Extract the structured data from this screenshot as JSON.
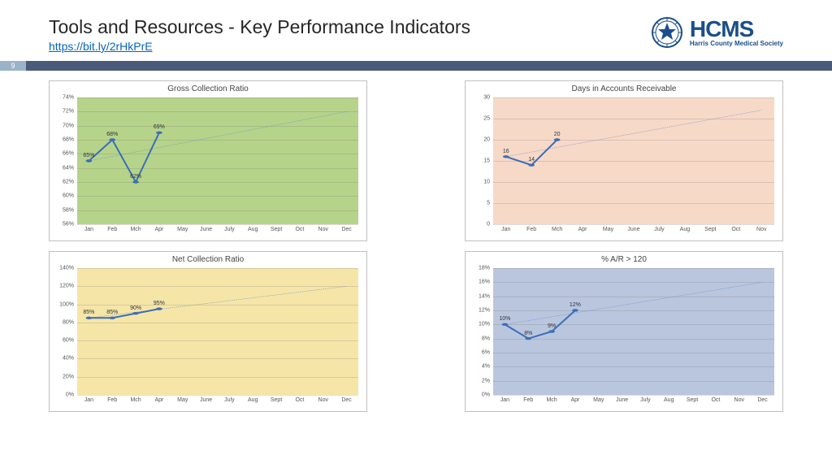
{
  "header": {
    "title": "Tools and Resources - Key Performance Indicators",
    "link": "https://bit.ly/2rHkPrE",
    "logo_main": "HCMS",
    "logo_sub": "Harris County Medical Society"
  },
  "page_number": "9",
  "colors": {
    "line": "#3b6fb6",
    "trend": "#6a8cc4"
  },
  "charts": [
    {
      "title": "Gross Collection Ratio",
      "bg": "#b6d38a",
      "y_min": 56,
      "y_max": 74,
      "y_step": 2,
      "y_suffix": "%",
      "months": [
        "Jan",
        "Feb",
        "Mch",
        "Apr",
        "May",
        "June",
        "July",
        "Aug",
        "Sept",
        "Oct",
        "Nov",
        "Dec"
      ],
      "values": [
        65,
        68,
        62,
        69
      ],
      "trend_end": 72
    },
    {
      "title": "Days in Accounts Receivable",
      "bg": "#f7d9c8",
      "y_min": 0,
      "y_max": 30,
      "y_step": 5,
      "y_suffix": "",
      "months": [
        "Jan",
        "Feb",
        "Mch",
        "Apr",
        "May",
        "June",
        "July",
        "Aug",
        "Sept",
        "Oct",
        "Nov"
      ],
      "values": [
        16,
        14,
        20
      ],
      "trend_end": 27
    },
    {
      "title": "Net Collection Ratio",
      "bg": "#f5e6a8",
      "y_min": 0,
      "y_max": 140,
      "y_step": 20,
      "y_suffix": "%",
      "months": [
        "Jan",
        "Feb",
        "Mch",
        "Apr",
        "May",
        "June",
        "July",
        "Aug",
        "Sept",
        "Oct",
        "Nov",
        "Dec"
      ],
      "values": [
        85,
        85,
        90,
        95
      ],
      "trend_end": 120
    },
    {
      "title": "% A/R > 120",
      "bg": "#b9c6de",
      "y_min": 0,
      "y_max": 18,
      "y_step": 2,
      "y_suffix": "%",
      "months": [
        "Jan",
        "Feb",
        "Mch",
        "Apr",
        "May",
        "June",
        "July",
        "Aug",
        "Sept",
        "Oct",
        "Nov",
        "Dec"
      ],
      "values": [
        10,
        8,
        9,
        12
      ],
      "trend_end": 16
    }
  ]
}
